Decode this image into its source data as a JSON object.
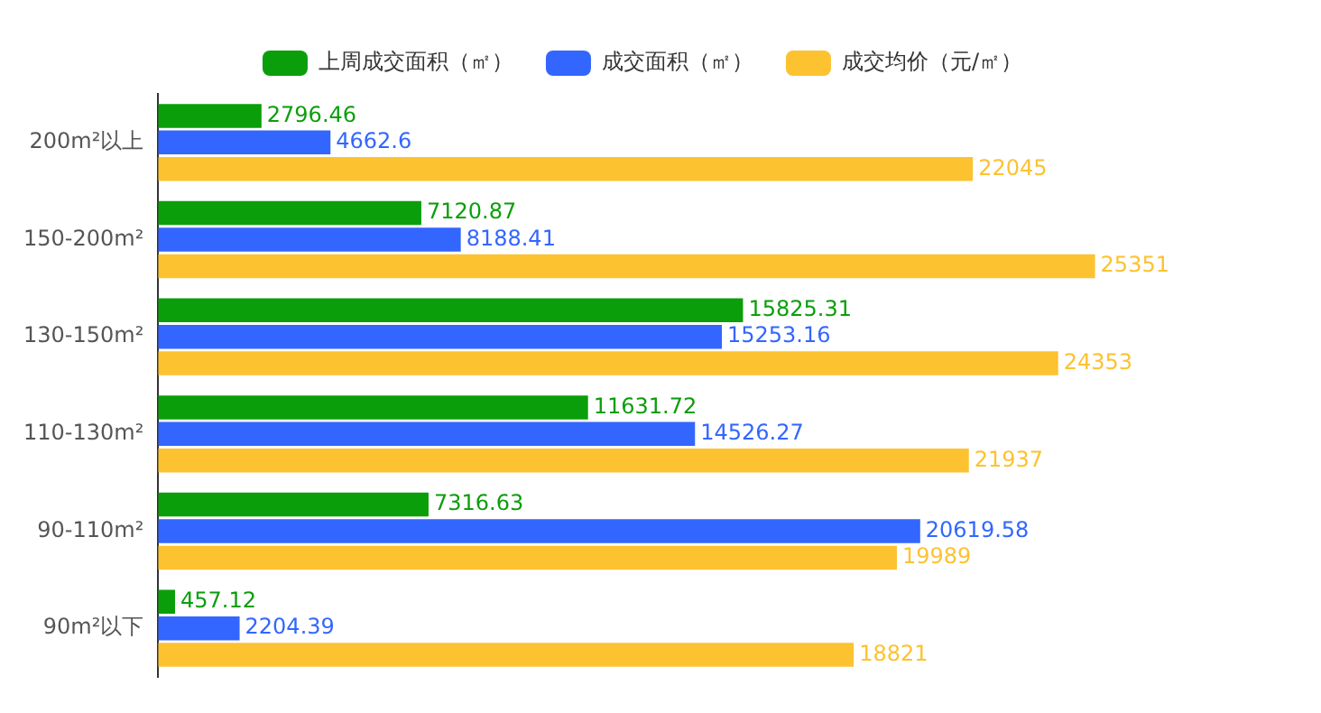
{
  "chart_data": {
    "type": "bar",
    "orientation": "horizontal",
    "categories": [
      "200m²以上",
      "150-200m²",
      "130-150m²",
      "110-130m²",
      "90-110m²",
      "90m²以下"
    ],
    "series": [
      {
        "name": "上周成交面积（㎡）",
        "color": "#0b9e0b",
        "values": [
          2796.46,
          7120.87,
          15825.31,
          11631.72,
          7316.63,
          457.12
        ]
      },
      {
        "name": "成交面积（㎡）",
        "color": "#3366ff",
        "values": [
          4662.6,
          8188.41,
          15253.16,
          14526.27,
          20619.58,
          2204.39
        ]
      },
      {
        "name": "成交均价（元/㎡）",
        "color": "#fcc230",
        "values": [
          22045,
          25351,
          24353,
          21937,
          19989,
          18821
        ]
      }
    ],
    "data_labels": true,
    "legend": "top",
    "grid": false,
    "tick_labels": "y"
  }
}
